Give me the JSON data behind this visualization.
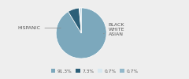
{
  "labels": [
    "HISPANIC",
    "BLACK",
    "WHITE",
    "ASIAN"
  ],
  "values": [
    91.3,
    7.3,
    0.7,
    0.7
  ],
  "colors": [
    "#7ca8bc",
    "#2c5f78",
    "#d8e8f0",
    "#93b8ca"
  ],
  "legend_labels": [
    "91.3%",
    "7.3%",
    "0.7%",
    "0.7%"
  ],
  "startangle": 90,
  "figsize": [
    2.4,
    1.0
  ],
  "dpi": 100,
  "bg_color": "#eeeeee",
  "text_color": "#555555",
  "line_color": "#888888"
}
